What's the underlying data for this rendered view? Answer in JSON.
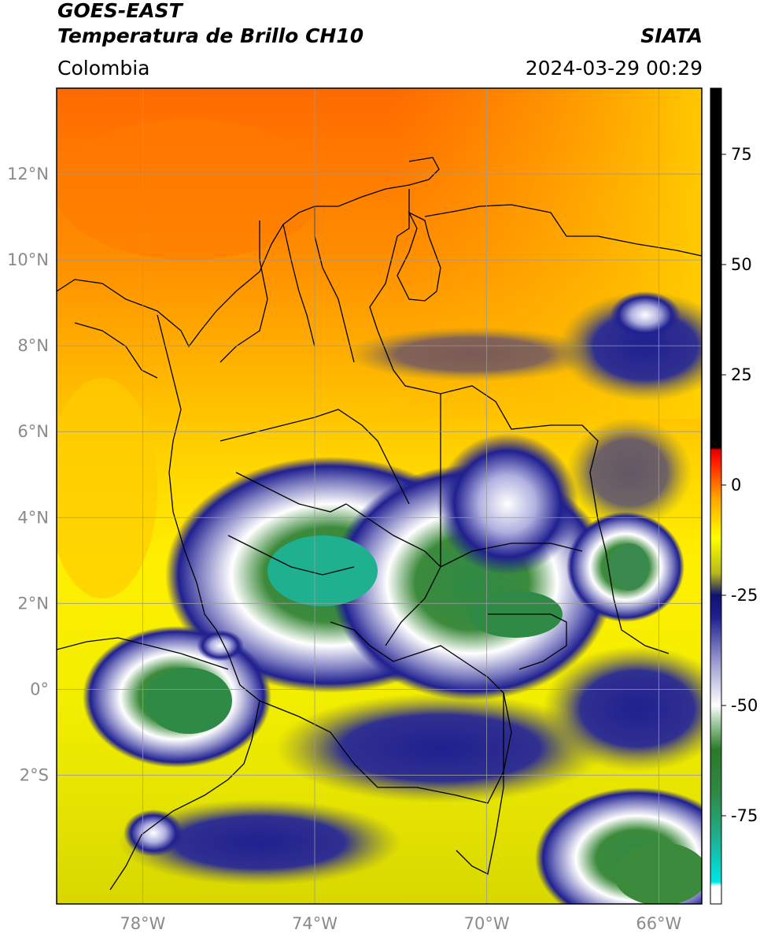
{
  "header": {
    "satellite": "GOES-EAST",
    "product": "Temperatura de Brillo CH10",
    "region": "Colombia",
    "source": "SIATA",
    "datetime": "2024-03-29 00:29"
  },
  "map": {
    "lon_range": [
      -80,
      -65
    ],
    "lat_range": [
      -5,
      14
    ],
    "lat_ticks": [
      {
        "value": 12,
        "label": "12°N"
      },
      {
        "value": 10,
        "label": "10°N"
      },
      {
        "value": 8,
        "label": "8°N"
      },
      {
        "value": 6,
        "label": "6°N"
      },
      {
        "value": 4,
        "label": "4°N"
      },
      {
        "value": 2,
        "label": "2°N"
      },
      {
        "value": 0,
        "label": "0°"
      },
      {
        "value": -2,
        "label": "2°S"
      }
    ],
    "lon_ticks": [
      {
        "value": -78,
        "label": "78°W"
      },
      {
        "value": -74,
        "label": "74°W"
      },
      {
        "value": -70,
        "label": "70°W"
      },
      {
        "value": -66,
        "label": "66°W"
      }
    ],
    "grid": true,
    "grid_color": "#9a9a9a"
  },
  "colorbar": {
    "range": [
      -95,
      90
    ],
    "ticks": [
      {
        "value": 75,
        "label": "75"
      },
      {
        "value": 50,
        "label": "50"
      },
      {
        "value": 25,
        "label": "25"
      },
      {
        "value": 0,
        "label": "0"
      },
      {
        "value": -25,
        "label": "-25"
      },
      {
        "value": -50,
        "label": "-50"
      },
      {
        "value": -75,
        "label": "-75"
      }
    ],
    "stops": [
      {
        "value": -95,
        "color": "#ffffff"
      },
      {
        "value": -91,
        "color": "#ffffff"
      },
      {
        "value": -90,
        "color": "#00e5e5"
      },
      {
        "value": -80,
        "color": "#1fb090"
      },
      {
        "value": -70,
        "color": "#2e8a45"
      },
      {
        "value": -60,
        "color": "#2a7a2a"
      },
      {
        "value": -54,
        "color": "#a0c8a0"
      },
      {
        "value": -50,
        "color": "#ffffff"
      },
      {
        "value": -40,
        "color": "#9a9ad0"
      },
      {
        "value": -30,
        "color": "#202090"
      },
      {
        "value": -25,
        "color": "#101070"
      },
      {
        "value": -20,
        "color": "#b8b820"
      },
      {
        "value": -12,
        "color": "#ffff00"
      },
      {
        "value": -3,
        "color": "#ffa500"
      },
      {
        "value": 5,
        "color": "#ff2000"
      },
      {
        "value": 8,
        "color": "#e00000"
      },
      {
        "value": 8.5,
        "color": "#000000"
      },
      {
        "value": 90,
        "color": "#000000"
      }
    ]
  }
}
